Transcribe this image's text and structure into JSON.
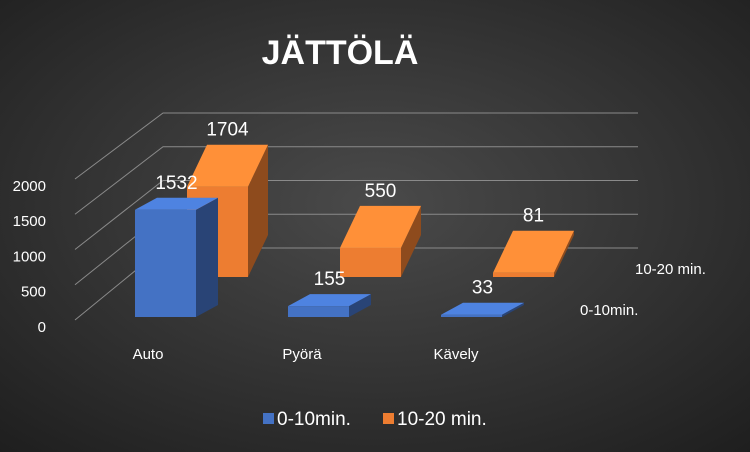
{
  "chart_data": {
    "type": "bar3d",
    "title": "JÄTTÖLÄ",
    "categories": [
      "Auto",
      "Pyörä",
      "Kävely"
    ],
    "series": [
      {
        "name": "0-10min.",
        "color": "#4472c4",
        "values": [
          1532,
          155,
          33
        ]
      },
      {
        "name": "10-20 min.",
        "color": "#ed7d31",
        "values": [
          1704,
          550,
          81
        ]
      }
    ],
    "ylim": [
      0,
      2000
    ],
    "yticks": [
      0,
      500,
      1000,
      1500,
      2000
    ],
    "grid": true,
    "legend": "bottom"
  }
}
